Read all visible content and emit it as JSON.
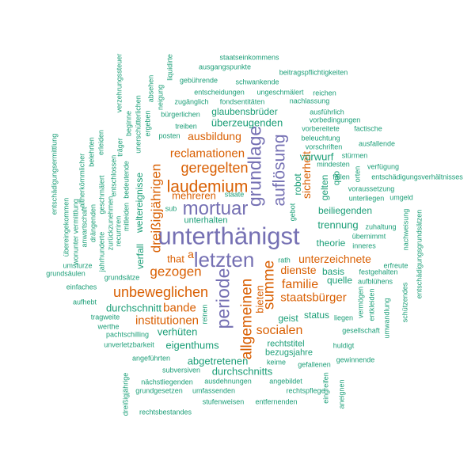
{
  "chart_data": {
    "type": "wordcloud",
    "words": [
      {
        "text": "unterthänigst",
        "color": "#7570b3"
      },
      {
        "text": "letzten",
        "color": "#7570b3"
      },
      {
        "text": "mortuar",
        "color": "#7570b3"
      },
      {
        "text": "grundlage",
        "color": "#7570b3"
      },
      {
        "text": "auflösung",
        "color": "#7570b3"
      },
      {
        "text": "periode",
        "color": "#7570b3"
      },
      {
        "text": "laudemium",
        "color": "#d95f02"
      },
      {
        "text": "geregelten",
        "color": "#d95f02"
      },
      {
        "text": "reclamationen",
        "color": "#d95f02"
      },
      {
        "text": "ausbildung",
        "color": "#d95f02"
      },
      {
        "text": "mehreren",
        "color": "#d95f02"
      },
      {
        "text": "dreißigjährigen",
        "color": "#d95f02"
      },
      {
        "text": "that",
        "color": "#d95f02"
      },
      {
        "text": "a",
        "color": "#d95f02"
      },
      {
        "text": "gezogen",
        "color": "#d95f02"
      },
      {
        "text": "unbeweglichen",
        "color": "#d95f02"
      },
      {
        "text": "bande",
        "color": "#d95f02"
      },
      {
        "text": "institutionen",
        "color": "#d95f02"
      },
      {
        "text": "unterzeichnete",
        "color": "#d95f02"
      },
      {
        "text": "dienste",
        "color": "#d95f02"
      },
      {
        "text": "familie",
        "color": "#d95f02"
      },
      {
        "text": "staatsbürger",
        "color": "#d95f02"
      },
      {
        "text": "socialen",
        "color": "#d95f02"
      },
      {
        "text": "summe",
        "color": "#d95f02"
      },
      {
        "text": "allgemeinen",
        "color": "#d95f02"
      },
      {
        "text": "bieten",
        "color": "#d95f02"
      },
      {
        "text": "sicherheit",
        "color": "#d95f02"
      },
      {
        "text": "staatseinkommens",
        "color": "#1b9e77"
      },
      {
        "text": "ausgangspunkte",
        "color": "#1b9e77"
      },
      {
        "text": "beitragspflichtigkeiten",
        "color": "#1b9e77"
      },
      {
        "text": "gebührende",
        "color": "#1b9e77"
      },
      {
        "text": "schwankende",
        "color": "#1b9e77"
      },
      {
        "text": "entscheidungen",
        "color": "#1b9e77"
      },
      {
        "text": "ungeschmälert",
        "color": "#1b9e77"
      },
      {
        "text": "reichen",
        "color": "#1b9e77"
      },
      {
        "text": "zugänglich",
        "color": "#1b9e77"
      },
      {
        "text": "fondsentitäten",
        "color": "#1b9e77"
      },
      {
        "text": "nachlassung",
        "color": "#1b9e77"
      },
      {
        "text": "glaubensbrüder",
        "color": "#1b9e77"
      },
      {
        "text": "ausführlich",
        "color": "#1b9e77"
      },
      {
        "text": "bürgerlichen",
        "color": "#1b9e77"
      },
      {
        "text": "vorbedingungen",
        "color": "#1b9e77"
      },
      {
        "text": "überzeugenden",
        "color": "#1b9e77"
      },
      {
        "text": "vorbereitete",
        "color": "#1b9e77"
      },
      {
        "text": "factische",
        "color": "#1b9e77"
      },
      {
        "text": "treiben",
        "color": "#1b9e77"
      },
      {
        "text": "posten",
        "color": "#1b9e77"
      },
      {
        "text": "beleuchtung",
        "color": "#1b9e77"
      },
      {
        "text": "vorschriften",
        "color": "#1b9e77"
      },
      {
        "text": "ausfallende",
        "color": "#1b9e77"
      },
      {
        "text": "vorwurf",
        "color": "#1b9e77"
      },
      {
        "text": "stürmen",
        "color": "#1b9e77"
      },
      {
        "text": "mindesten",
        "color": "#1b9e77"
      },
      {
        "text": "verfügung",
        "color": "#1b9e77"
      },
      {
        "text": "fällen",
        "color": "#1b9e77"
      },
      {
        "text": "entschädigungsverhältnisses",
        "color": "#1b9e77"
      },
      {
        "text": "voraussetzung",
        "color": "#1b9e77"
      },
      {
        "text": "umgeld",
        "color": "#1b9e77"
      },
      {
        "text": "unterliegen",
        "color": "#1b9e77"
      },
      {
        "text": "staate",
        "color": "#1b9e77"
      },
      {
        "text": "sub",
        "color": "#1b9e77"
      },
      {
        "text": "unterhalten",
        "color": "#1b9e77"
      },
      {
        "text": "beiliegenden",
        "color": "#1b9e77"
      },
      {
        "text": "zuhaltung",
        "color": "#1b9e77"
      },
      {
        "text": "übernimmt",
        "color": "#1b9e77"
      },
      {
        "text": "trennung",
        "color": "#1b9e77"
      },
      {
        "text": "inneres",
        "color": "#1b9e77"
      },
      {
        "text": "theorie",
        "color": "#1b9e77"
      },
      {
        "text": "rath",
        "color": "#1b9e77"
      },
      {
        "text": "festgehalten",
        "color": "#1b9e77"
      },
      {
        "text": "erfreute",
        "color": "#1b9e77"
      },
      {
        "text": "basis",
        "color": "#1b9e77"
      },
      {
        "text": "quelle",
        "color": "#1b9e77"
      },
      {
        "text": "aufblühens",
        "color": "#1b9e77"
      },
      {
        "text": "durchschnitt",
        "color": "#1b9e77"
      },
      {
        "text": "status",
        "color": "#1b9e77"
      },
      {
        "text": "liegen",
        "color": "#1b9e77"
      },
      {
        "text": "geist",
        "color": "#1b9e77"
      },
      {
        "text": "verhüten",
        "color": "#1b9e77"
      },
      {
        "text": "gesellschaft",
        "color": "#1b9e77"
      },
      {
        "text": "eigenthums",
        "color": "#1b9e77"
      },
      {
        "text": "rechtstitel",
        "color": "#1b9e77"
      },
      {
        "text": "huldigt",
        "color": "#1b9e77"
      },
      {
        "text": "bezugsjahre",
        "color": "#1b9e77"
      },
      {
        "text": "abgetretenen",
        "color": "#1b9e77"
      },
      {
        "text": "keime",
        "color": "#1b9e77"
      },
      {
        "text": "gefallenen",
        "color": "#1b9e77"
      },
      {
        "text": "gewinnende",
        "color": "#1b9e77"
      },
      {
        "text": "durchschnitts",
        "color": "#1b9e77"
      },
      {
        "text": "angeführten",
        "color": "#1b9e77"
      },
      {
        "text": "subversiven",
        "color": "#1b9e77"
      },
      {
        "text": "nächstliegenden",
        "color": "#1b9e77"
      },
      {
        "text": "ausdehnungen",
        "color": "#1b9e77"
      },
      {
        "text": "angebildet",
        "color": "#1b9e77"
      },
      {
        "text": "grundgesetzen",
        "color": "#1b9e77"
      },
      {
        "text": "umfassenden",
        "color": "#1b9e77"
      },
      {
        "text": "rechtspflege",
        "color": "#1b9e77"
      },
      {
        "text": "stufenweisen",
        "color": "#1b9e77"
      },
      {
        "text": "entfernenden",
        "color": "#1b9e77"
      },
      {
        "text": "rechtsbestandes",
        "color": "#1b9e77"
      },
      {
        "text": "grundsätze",
        "color": "#1b9e77"
      },
      {
        "text": "umsturze",
        "color": "#1b9e77"
      },
      {
        "text": "grundsäulen",
        "color": "#1b9e77"
      },
      {
        "text": "einfaches",
        "color": "#1b9e77"
      },
      {
        "text": "aufhebt",
        "color": "#1b9e77"
      },
      {
        "text": "tragweite",
        "color": "#1b9e77"
      },
      {
        "text": "werthe",
        "color": "#1b9e77"
      },
      {
        "text": "pachtschilling",
        "color": "#1b9e77"
      },
      {
        "text": "unverletzbarkeit",
        "color": "#1b9e77"
      },
      {
        "text": "liquidirte",
        "color": "#1b9e77"
      },
      {
        "text": "absehen",
        "color": "#1b9e77"
      },
      {
        "text": "neigung",
        "color": "#1b9e77"
      },
      {
        "text": "unerschütterlichen",
        "color": "#1b9e77"
      },
      {
        "text": "ergeben",
        "color": "#1b9e77"
      },
      {
        "text": "verzehrungssteuer",
        "color": "#1b9e77"
      },
      {
        "text": "beginne",
        "color": "#1b9e77"
      },
      {
        "text": "träger",
        "color": "#1b9e77"
      },
      {
        "text": "entschlossen",
        "color": "#1b9e77"
      },
      {
        "text": "bedeutende",
        "color": "#1b9e77"
      },
      {
        "text": "mitleiden",
        "color": "#1b9e77"
      },
      {
        "text": "weltereignisse",
        "color": "#1b9e77"
      },
      {
        "text": "verfall",
        "color": "#1b9e77"
      },
      {
        "text": "erleiden",
        "color": "#1b9e77"
      },
      {
        "text": "belehrten",
        "color": "#1b9e77"
      },
      {
        "text": "altherkömmlicher",
        "color": "#1b9e77"
      },
      {
        "text": "geschmälert",
        "color": "#1b9e77"
      },
      {
        "text": "drängenden",
        "color": "#1b9e77"
      },
      {
        "text": "jahrhunderte",
        "color": "#1b9e77"
      },
      {
        "text": "zurückzunehmen",
        "color": "#1b9e77"
      },
      {
        "text": "recurriren",
        "color": "#1b9e77"
      },
      {
        "text": "anwartschaft",
        "color": "#1b9e77"
      },
      {
        "text": "wonunter vermittlung",
        "color": "#1b9e77"
      },
      {
        "text": "übereingekommen",
        "color": "#1b9e77"
      },
      {
        "text": "entschädigungsermittlung",
        "color": "#1b9e77"
      },
      {
        "text": "robot",
        "color": "#1b9e77"
      },
      {
        "text": "gebot",
        "color": "#1b9e77"
      },
      {
        "text": "gelten",
        "color": "#1b9e77"
      },
      {
        "text": "quo",
        "color": "#1b9e77"
      },
      {
        "text": "orten",
        "color": "#1b9e77"
      },
      {
        "text": "reinen",
        "color": "#1b9e77"
      },
      {
        "text": "dreißigjährige",
        "color": "#1b9e77"
      },
      {
        "text": "eingreifen",
        "color": "#1b9e77"
      },
      {
        "text": "aneignen",
        "color": "#1b9e77"
      },
      {
        "text": "vermögen",
        "color": "#1b9e77"
      },
      {
        "text": "entkleiden",
        "color": "#1b9e77"
      },
      {
        "text": "umwandlung",
        "color": "#1b9e77"
      },
      {
        "text": "schützendes",
        "color": "#1b9e77"
      },
      {
        "text": "nachweisung",
        "color": "#1b9e77"
      },
      {
        "text": "entschädigungsgrundsätzen",
        "color": "#1b9e77"
      }
    ]
  }
}
